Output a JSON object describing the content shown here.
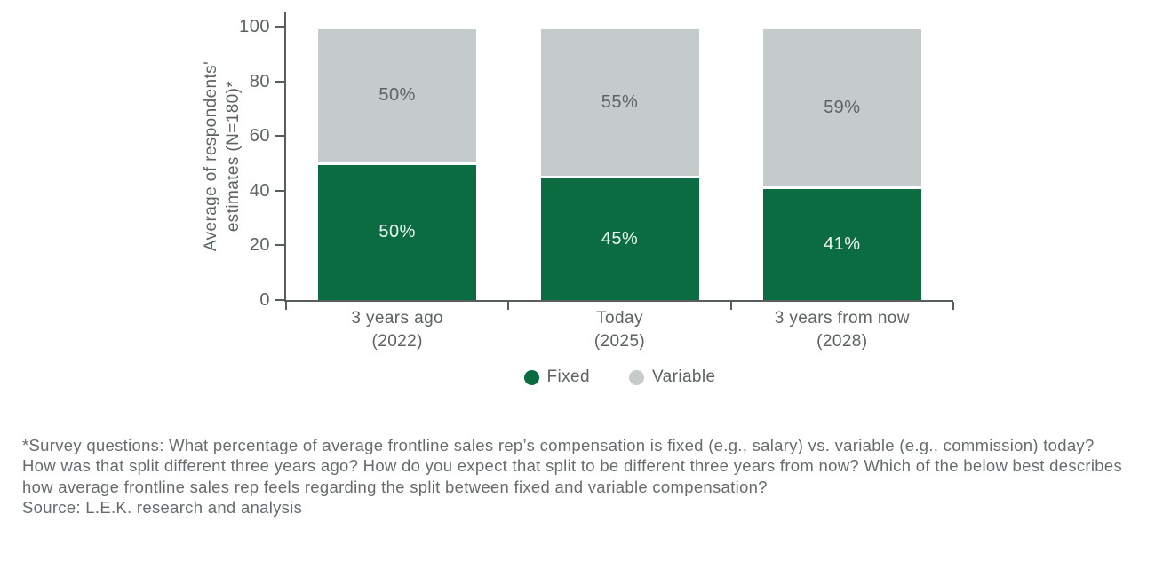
{
  "chart_data": {
    "type": "bar",
    "stacked": true,
    "title": "",
    "xlabel": "",
    "ylabel": "Average of respondents' estimates (N=180)*",
    "ylabel_line1": "Average of respondents'",
    "ylabel_line2": "estimates (N=180)*",
    "categories": [
      "3 years ago\n(2022)",
      "Today\n(2025)",
      "3 years from now\n(2028)"
    ],
    "series": [
      {
        "name": "Fixed",
        "values": [
          50,
          45,
          41
        ],
        "color": "#0b6b41",
        "value_label_color": "#eff6f1"
      },
      {
        "name": "Variable",
        "values": [
          50,
          55,
          59
        ],
        "color": "#c5cbca",
        "value_label_color": "#5d6362"
      }
    ],
    "value_suffix": "%",
    "y_ticks": [
      0,
      20,
      40,
      60,
      80,
      100
    ],
    "ylim": [
      0,
      100
    ],
    "grid": false,
    "legend_position": "bottom"
  },
  "legend": {
    "fixed_label": "Fixed",
    "variable_label": "Variable"
  },
  "footnote": {
    "survey_note": "*Survey questions: What percentage of average frontline sales rep’s compensation is fixed (e.g., salary) vs. variable (e.g., commission) today? How was that split different three years ago? How do you expect that split to be different three years from now? Which of the below best describes how average frontline sales rep feels regarding the split between fixed and variable compensation?",
    "source": "Source: L.E.K. research and analysis"
  },
  "colors": {
    "fixed": "#0b6b41",
    "variable": "#c5cbca",
    "axis": "#585e5f",
    "text": "#5d6362",
    "footnote_text": "#666c6e",
    "background": "#ffffff"
  }
}
